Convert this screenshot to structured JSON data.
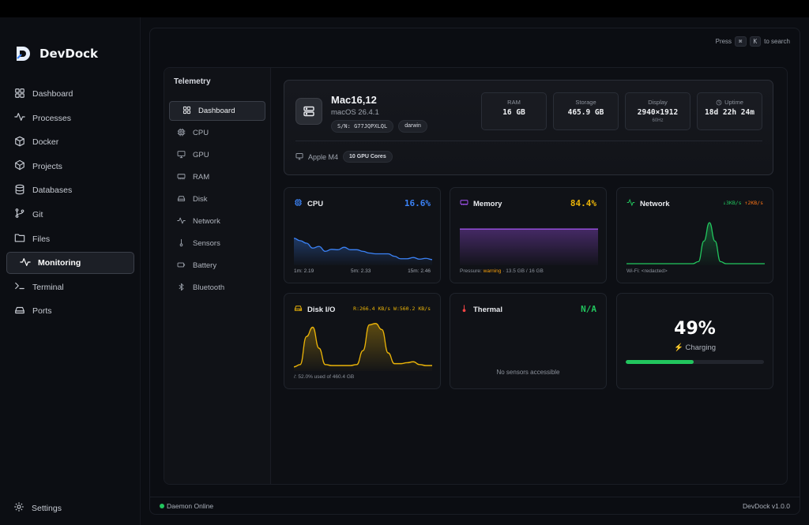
{
  "app": {
    "name": "DevDock",
    "version": "DevDock v1.0.0"
  },
  "colors": {
    "accent": "#3b82f6",
    "cpu": "#3b82f6",
    "memory": "#a855f7",
    "network": "#22c55e",
    "disk": "#eab308",
    "thermal": "#22c55e",
    "warning": "#f59e0b",
    "battery": "#22c55e"
  },
  "sidebar": {
    "items": [
      {
        "label": "Dashboard",
        "icon": "grid-icon"
      },
      {
        "label": "Processes",
        "icon": "activity-icon"
      },
      {
        "label": "Docker",
        "icon": "box-icon"
      },
      {
        "label": "Projects",
        "icon": "cube-icon"
      },
      {
        "label": "Databases",
        "icon": "database-icon"
      },
      {
        "label": "Git",
        "icon": "git-branch-icon"
      },
      {
        "label": "Files",
        "icon": "folder-icon"
      },
      {
        "label": "Monitoring",
        "icon": "activity-icon",
        "active": true
      },
      {
        "label": "Terminal",
        "icon": "terminal-icon"
      },
      {
        "label": "Ports",
        "icon": "hard-drive-icon"
      }
    ],
    "settings": "Settings"
  },
  "search_hint": {
    "prefix": "Press",
    "key1": "⌘",
    "key2": "K",
    "suffix": "to search"
  },
  "telemetry": {
    "title": "Telemetry",
    "items": [
      {
        "label": "Dashboard",
        "icon": "grid-icon",
        "active": true
      },
      {
        "label": "CPU",
        "icon": "cpu-icon"
      },
      {
        "label": "GPU",
        "icon": "monitor-icon"
      },
      {
        "label": "RAM",
        "icon": "memory-icon"
      },
      {
        "label": "Disk",
        "icon": "hard-drive-icon"
      },
      {
        "label": "Network",
        "icon": "activity-icon"
      },
      {
        "label": "Sensors",
        "icon": "thermometer-icon"
      },
      {
        "label": "Battery",
        "icon": "battery-icon"
      },
      {
        "label": "Bluetooth",
        "icon": "bluetooth-icon"
      }
    ]
  },
  "host": {
    "model": "Mac16,12",
    "os": "macOS 26.4.1",
    "serial": "S/N: G77JQPXLQL",
    "platform": "darwin",
    "gpu": "Apple M4",
    "gpu_cores": "10 GPU Cores",
    "stats": [
      {
        "label": "RAM",
        "value": "16 GB",
        "sub": ""
      },
      {
        "label": "Storage",
        "value": "465.9 GB",
        "sub": ""
      },
      {
        "label": "Display",
        "value": "2940×1912",
        "sub": "60Hz"
      },
      {
        "label": "Uptime",
        "value": "18d 22h 24m",
        "sub": "",
        "icon": "clock-icon"
      }
    ]
  },
  "cards": {
    "cpu": {
      "title": "CPU",
      "value": "16.6%",
      "load1": "1m: 2.19",
      "load5": "5m: 2.33",
      "load15": "15m: 2.46"
    },
    "memory": {
      "title": "Memory",
      "value": "84.4%",
      "pressure_label": "Pressure:",
      "pressure_value": "warning",
      "usage": "· 13.5 GB / 16 GB"
    },
    "network": {
      "title": "Network",
      "down": "↓3KB/s",
      "up": "↑2KB/s",
      "wifi": "Wi-Fi: <redacted>"
    },
    "disk": {
      "title": "Disk I/O",
      "rates": "R:266.4 KB/s W:560.2 KB/s",
      "usage": "/: 52.0% used of 460.4 GB"
    },
    "thermal": {
      "title": "Thermal",
      "value": "N/A",
      "message": "No sensors accessible"
    },
    "battery": {
      "percent": "49%",
      "state": "⚡ Charging",
      "level": 0.49
    }
  },
  "chart_data": [
    {
      "type": "area",
      "title": "CPU",
      "series": [
        {
          "values": [
            0.62,
            0.56,
            0.5,
            0.38,
            0.42,
            0.3,
            0.35,
            0.34,
            0.4,
            0.34,
            0.34,
            0.3,
            0.26,
            0.24,
            0.24,
            0.24,
            0.18,
            0.12,
            0.12,
            0.15,
            0.11,
            0.13,
            0.1
          ]
        }
      ],
      "ylim": [
        0,
        1
      ]
    },
    {
      "type": "area",
      "title": "Memory",
      "series": [
        {
          "values": [
            0.844,
            0.844,
            0.844,
            0.844,
            0.844,
            0.844,
            0.844,
            0.844,
            0.844,
            0.844,
            0.844,
            0.844,
            0.844,
            0.844,
            0.844,
            0.844,
            0.844,
            0.844,
            0.844,
            0.844
          ]
        }
      ],
      "ylim": [
        0,
        1
      ]
    },
    {
      "type": "area",
      "title": "Network",
      "series": [
        {
          "values": [
            0,
            0,
            0,
            0,
            0,
            0,
            0,
            0,
            0,
            0,
            0,
            0,
            0,
            0.05,
            0.55,
            1.0,
            0.55,
            0.05,
            0,
            0,
            0,
            0,
            0,
            0,
            0,
            0
          ]
        }
      ],
      "ylim": [
        0,
        1
      ]
    },
    {
      "type": "area",
      "title": "Disk I/O",
      "series": [
        {
          "values": [
            0.05,
            0.1,
            0.7,
            0.9,
            0.45,
            0.1,
            0.08,
            0.08,
            0.08,
            0.08,
            0.1,
            0.4,
            0.95,
            0.98,
            0.85,
            0.35,
            0.12,
            0.12,
            0.14,
            0.16,
            0.1,
            0.08,
            0.08
          ]
        }
      ],
      "ylim": [
        0,
        1
      ]
    }
  ]
}
